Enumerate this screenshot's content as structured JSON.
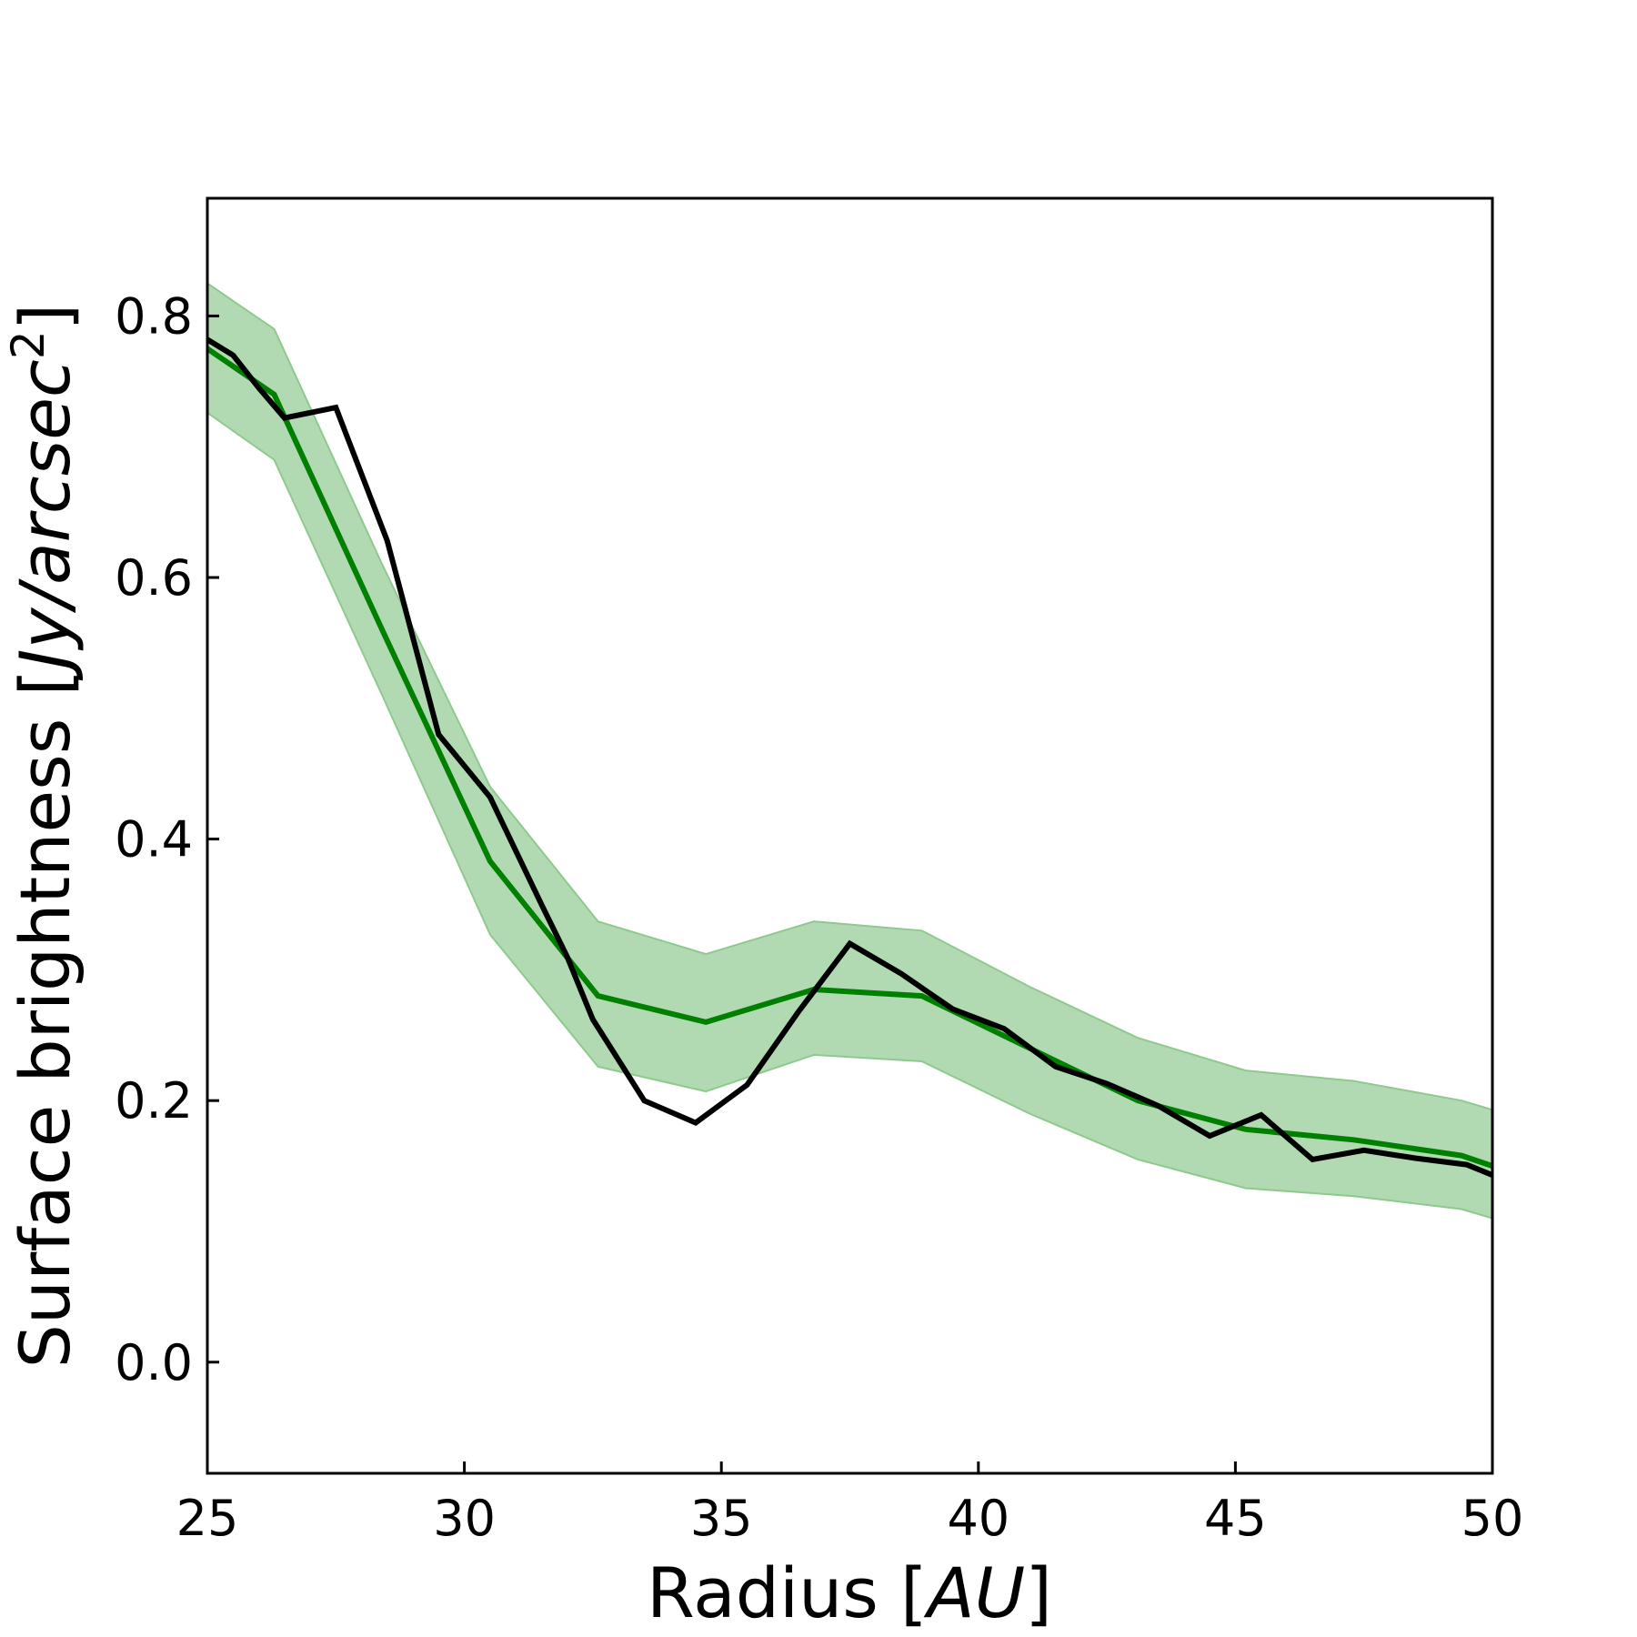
{
  "chart_data": {
    "type": "line",
    "xlabel_parts": [
      "Radius [",
      "AU",
      "]"
    ],
    "ylabel_parts": [
      "Surface brightness [",
      "Jy/arcsec",
      "2",
      "]"
    ],
    "xlim": [
      25,
      50
    ],
    "ylim": [
      -0.085,
      0.89
    ],
    "xticks": [
      25,
      30,
      35,
      40,
      45,
      50
    ],
    "xtick_labels": [
      "25",
      "30",
      "35",
      "40",
      "45",
      "50"
    ],
    "yticks": [
      0.0,
      0.2,
      0.4,
      0.6,
      0.8
    ],
    "ytick_labels": [
      "0.0",
      "0.2",
      "0.4",
      "0.6",
      "0.8"
    ],
    "grid": false,
    "legend": "none",
    "series": [
      {
        "color": "#008000",
        "x": [
          25.0,
          26.3,
          28.4,
          30.5,
          32.6,
          34.7,
          36.8,
          38.9,
          41.0,
          43.1,
          45.2,
          47.3,
          49.4,
          50.0
        ],
        "y": [
          0.775,
          0.74,
          0.56,
          0.383,
          0.28,
          0.26,
          0.285,
          0.28,
          0.24,
          0.2,
          0.178,
          0.17,
          0.158,
          0.15
        ],
        "band_lower": [
          0.726,
          0.69,
          0.51,
          0.327,
          0.226,
          0.207,
          0.235,
          0.23,
          0.19,
          0.155,
          0.133,
          0.127,
          0.117,
          0.11
        ],
        "band_upper": [
          0.825,
          0.79,
          0.61,
          0.44,
          0.337,
          0.312,
          0.337,
          0.33,
          0.287,
          0.248,
          0.223,
          0.215,
          0.2,
          0.193
        ],
        "band_color": "#b2dab2"
      },
      {
        "color": "#000000",
        "x": [
          25.0,
          25.5,
          26.0,
          26.5,
          27.5,
          28.5,
          29.5,
          30.5,
          31.5,
          32.0,
          32.5,
          33.5,
          34.5,
          35.5,
          36.5,
          37.5,
          38.5,
          39.5,
          40.5,
          41.5,
          42.5,
          43.5,
          44.5,
          45.5,
          46.5,
          47.5,
          48.5,
          49.5,
          50.0
        ],
        "y": [
          0.782,
          0.77,
          0.745,
          0.722,
          0.73,
          0.628,
          0.48,
          0.432,
          0.35,
          0.31,
          0.262,
          0.2,
          0.183,
          0.212,
          0.268,
          0.32,
          0.297,
          0.27,
          0.255,
          0.226,
          0.213,
          0.196,
          0.173,
          0.189,
          0.155,
          0.162,
          0.156,
          0.151,
          0.143
        ]
      }
    ]
  }
}
